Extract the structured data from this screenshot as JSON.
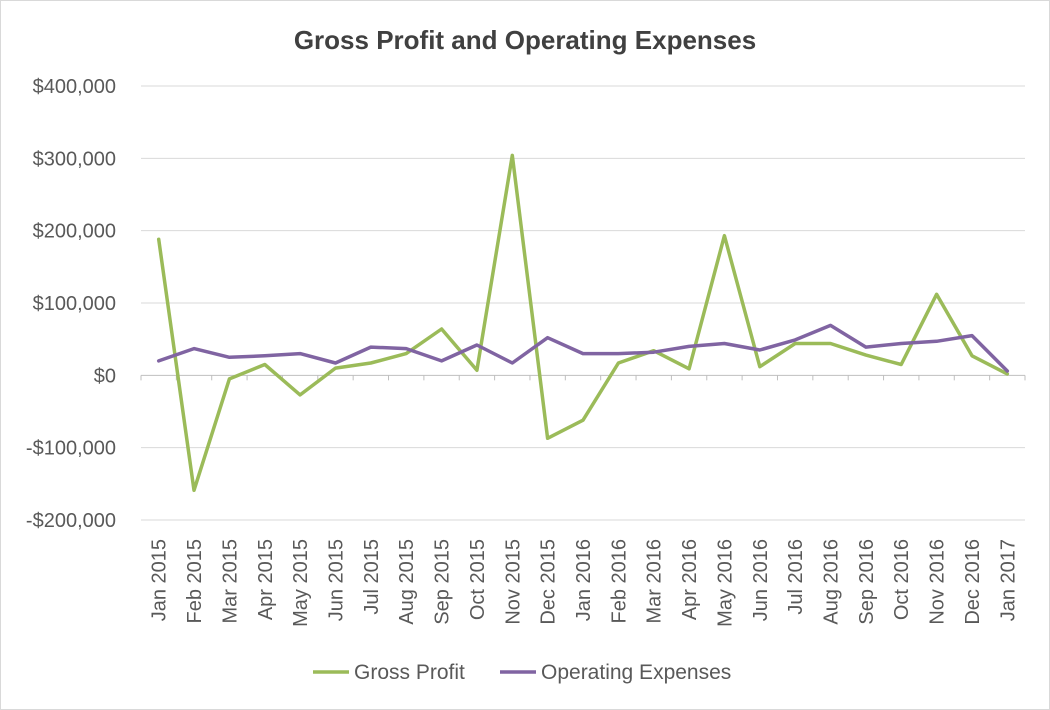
{
  "chart_data": {
    "type": "line",
    "title": "Gross Profit and Operating Expenses",
    "xlabel": "",
    "ylabel": "",
    "ylim": [
      -200000,
      400000
    ],
    "y_ticks": [
      400000,
      300000,
      200000,
      100000,
      0,
      -100000,
      -200000
    ],
    "y_tick_labels": [
      "$400,000",
      "$300,000",
      "$200,000",
      "$100,000",
      "$0",
      "-$100,000",
      "-$200,000"
    ],
    "grid": true,
    "legend_position": "bottom",
    "categories": [
      "Jan 2015",
      "Feb 2015",
      "Mar 2015",
      "Apr 2015",
      "May 2015",
      "Jun 2015",
      "Jul 2015",
      "Aug 2015",
      "Sep 2015",
      "Oct 2015",
      "Nov 2015",
      "Dec 2015",
      "Jan 2016",
      "Feb 2016",
      "Mar 2016",
      "Apr 2016",
      "May 2016",
      "Jun 2016",
      "Jul 2016",
      "Aug 2016",
      "Sep 2016",
      "Oct 2016",
      "Nov 2016",
      "Dec 2016",
      "Jan 2017"
    ],
    "series": [
      {
        "name": "Gross Profit",
        "color": "#9bbb59",
        "values": [
          188000,
          -159000,
          -5000,
          15000,
          -27000,
          10000,
          17000,
          30000,
          64000,
          7000,
          304000,
          -87000,
          -62000,
          17000,
          34000,
          9000,
          193000,
          12000,
          44000,
          44000,
          28000,
          15000,
          112000,
          27000,
          2000
        ]
      },
      {
        "name": "Operating Expenses",
        "color": "#8064a2",
        "values": [
          20000,
          37000,
          25000,
          27000,
          30000,
          17000,
          39000,
          37000,
          20000,
          42000,
          17000,
          52000,
          30000,
          30000,
          32000,
          40000,
          44000,
          35000,
          49000,
          69000,
          39000,
          44000,
          47000,
          55000,
          6000
        ]
      }
    ]
  }
}
